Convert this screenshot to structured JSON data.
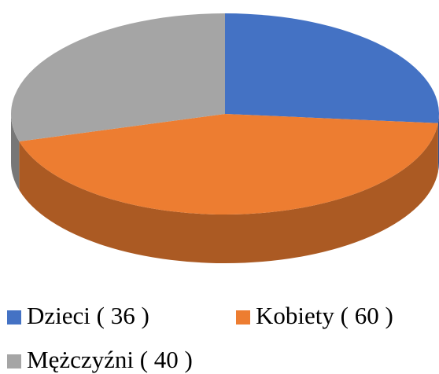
{
  "chart_data": {
    "type": "pie3d",
    "categories": [
      "Dzieci ( 36 )",
      "Kobiety ( 60 )",
      "Mężczyźni ( 40 )"
    ],
    "values": [
      36,
      60,
      40
    ],
    "colors": [
      "#4472c4",
      "#ed7d31",
      "#a5a5a5"
    ]
  }
}
